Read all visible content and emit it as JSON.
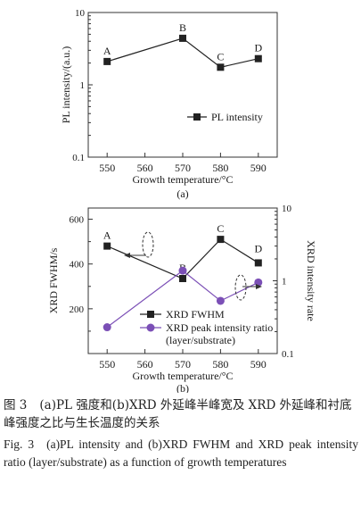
{
  "chart_data": [
    {
      "type": "line",
      "panel_label": "(a)",
      "x": [
        550,
        570,
        580,
        590
      ],
      "xlim": [
        545,
        595
      ],
      "xticks": [
        "550",
        "560",
        "570",
        "580",
        "590"
      ],
      "xlabel": "Growth temperature/°C",
      "ylabel": "PL intensity/(a.u.)",
      "yscale": "log",
      "ylim": [
        0.1,
        10
      ],
      "yticks": [
        "0.1",
        "1",
        "10"
      ],
      "point_labels": [
        "A",
        "B",
        "C",
        "D"
      ],
      "series": [
        {
          "name": "PL intensity",
          "values": [
            2.1,
            4.4,
            1.75,
            2.3
          ],
          "color": "#222222",
          "marker": "square"
        }
      ],
      "legend_position": "bottom-right"
    },
    {
      "type": "line",
      "panel_label": "(b)",
      "x": [
        550,
        570,
        580,
        590
      ],
      "xlim": [
        545,
        595
      ],
      "xticks": [
        "550",
        "560",
        "570",
        "580",
        "590"
      ],
      "xlabel": "Growth temperature/°C",
      "ylabel_left": "XRD FWHM/s",
      "ylabel_right": "XRD intensity rate",
      "ylim_left": [
        0,
        650
      ],
      "yticks_left": [
        "200",
        "400",
        "600"
      ],
      "yscale_right": "log",
      "ylim_right": [
        0.1,
        10
      ],
      "yticks_right": [
        "0.1",
        "1",
        "10"
      ],
      "point_labels": [
        "A",
        "B",
        "C",
        "D"
      ],
      "series": [
        {
          "name": "XRD FWHM",
          "axis": "left",
          "values": [
            480,
            335,
            510,
            405
          ],
          "color": "#222222",
          "marker": "square"
        },
        {
          "name": "XRD peak intensity ratio (layer/substrate)",
          "axis": "right",
          "values": [
            0.23,
            1.38,
            0.53,
            0.95
          ],
          "color": "#7b4fb6",
          "marker": "circle"
        }
      ],
      "legend_position": "bottom-right"
    }
  ],
  "caption": {
    "zh_number": "图 3",
    "zh_text": "(a)PL 强度和(b)XRD 外延峰半峰宽及 XRD 外延峰和衬底峰强度之比与生长温度的关系",
    "en_number": "Fig. 3",
    "en_text": "(a)PL intensity and (b)XRD FWHM and XRD peak intensity ratio (layer/substrate) as a function of growth temperatures"
  }
}
